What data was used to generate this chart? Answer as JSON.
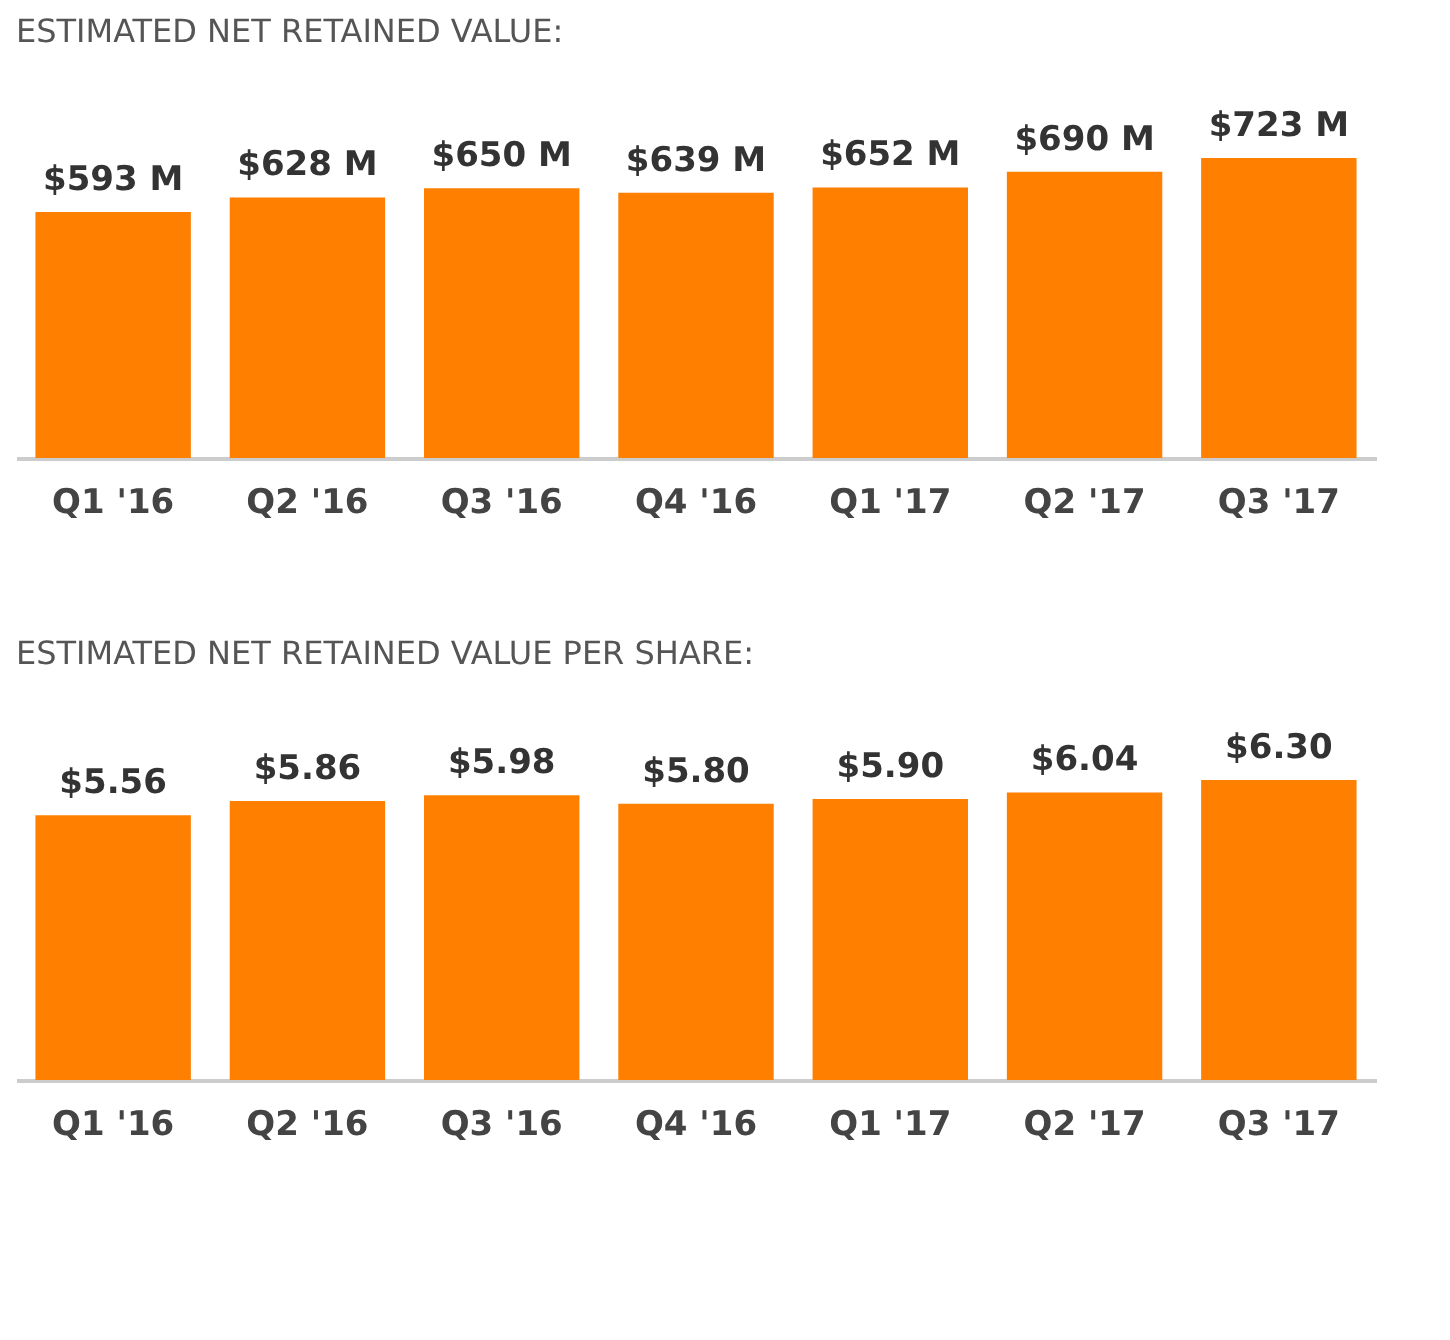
{
  "chart_data": [
    {
      "type": "bar",
      "title": "ESTIMATED NET RETAINED VALUE:",
      "categories": [
        "Q1 '16",
        "Q2 '16",
        "Q3 '16",
        "Q4 '16",
        "Q1 '17",
        "Q2 '17",
        "Q3 '17"
      ],
      "values": [
        593,
        628,
        650,
        639,
        652,
        690,
        723
      ],
      "value_labels": [
        "$593 M",
        "$628 M",
        "$650 M",
        "$639 M",
        "$652 M",
        "$690 M",
        "$723 M"
      ],
      "color": "#ff7f00",
      "tick_labels": "x"
    },
    {
      "type": "bar",
      "title": "ESTIMATED NET RETAINED VALUE PER SHARE:",
      "categories": [
        "Q1 '16",
        "Q2 '16",
        "Q3 '16",
        "Q4 '16",
        "Q1 '17",
        "Q2 '17",
        "Q3 '17"
      ],
      "values": [
        5.56,
        5.86,
        5.98,
        5.8,
        5.9,
        6.04,
        6.3
      ],
      "value_labels": [
        "$5.56",
        "$5.86",
        "$5.98",
        "$5.80",
        "$5.90",
        "$6.04",
        "$6.30"
      ],
      "color": "#ff7f00",
      "tick_labels": "x"
    }
  ]
}
